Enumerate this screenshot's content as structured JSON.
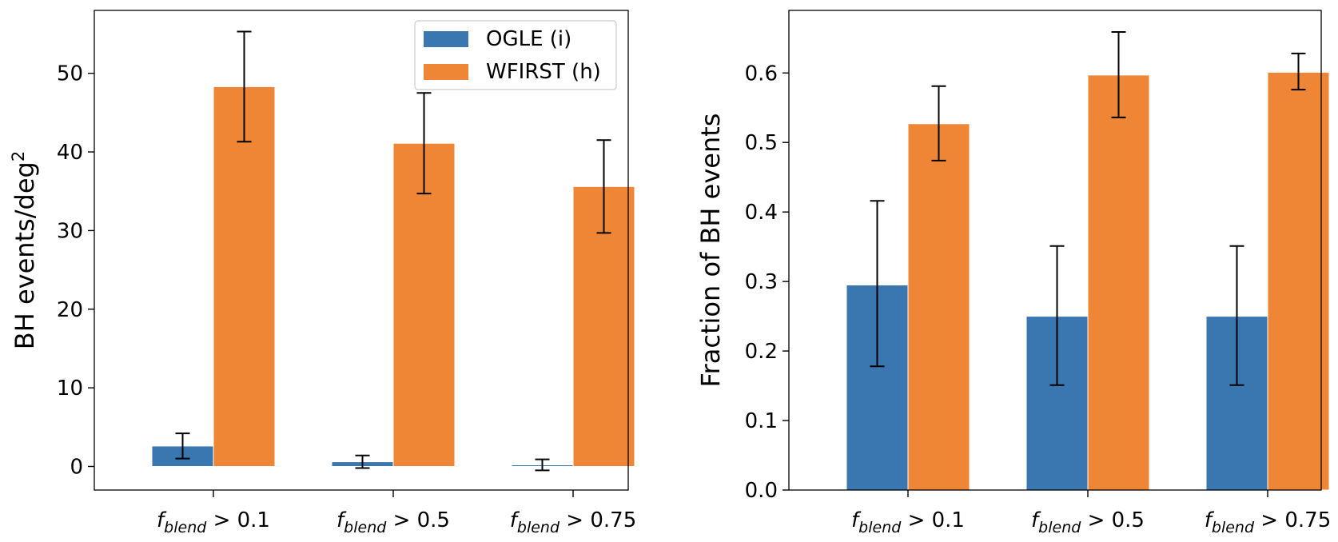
{
  "chart_data": [
    {
      "type": "bar",
      "categories": [
        "f_blend > 0.1",
        "f_blend > 0.5",
        "f_blend > 0.75"
      ],
      "category_labels": [
        {
          "sym": "f",
          "sub": "blend",
          "op": " > 0.1"
        },
        {
          "sym": "f",
          "sub": "blend",
          "op": " > 0.5"
        },
        {
          "sym": "f",
          "sub": "blend",
          "op": " > 0.75"
        }
      ],
      "ylabel": "BH events/deg",
      "ylabel_sup": "2",
      "ylim": [
        -3,
        58
      ],
      "yticks": [
        0,
        10,
        20,
        30,
        40,
        50
      ],
      "series": [
        {
          "name": "OGLE (i)",
          "color": "#3a76af",
          "values": [
            2.6,
            0.6,
            0.2
          ],
          "err": [
            1.6,
            0.8,
            0.7
          ]
        },
        {
          "name": "WFIRST (h)",
          "color": "#ee8636",
          "values": [
            48.3,
            41.1,
            35.6
          ],
          "err": [
            7.0,
            6.4,
            5.9
          ]
        }
      ],
      "legend": {
        "position": "top-right"
      }
    },
    {
      "type": "bar",
      "categories": [
        "f_blend > 0.1",
        "f_blend > 0.5",
        "f_blend > 0.75"
      ],
      "category_labels": [
        {
          "sym": "f",
          "sub": "blend",
          "op": " > 0.1"
        },
        {
          "sym": "f",
          "sub": "blend",
          "op": " > 0.5"
        },
        {
          "sym": "f",
          "sub": "blend",
          "op": " > 0.75"
        }
      ],
      "ylabel": "Fraction of BH events",
      "ylim": [
        0,
        0.69
      ],
      "yticks": [
        "0.0",
        "0.1",
        "0.2",
        "0.3",
        "0.4",
        "0.5",
        "0.6"
      ],
      "series": [
        {
          "name": "OGLE (i)",
          "color": "#3a76af",
          "values": [
            0.295,
            0.25,
            0.25
          ],
          "err_low": [
            0.117,
            0.099,
            0.099
          ],
          "err_high": [
            0.121,
            0.101,
            0.101
          ]
        },
        {
          "name": "WFIRST (h)",
          "color": "#ee8636",
          "values": [
            0.527,
            0.597,
            0.601
          ],
          "err_low": [
            0.053,
            0.061,
            0.025
          ],
          "err_high": [
            0.054,
            0.062,
            0.027
          ]
        }
      ]
    }
  ]
}
